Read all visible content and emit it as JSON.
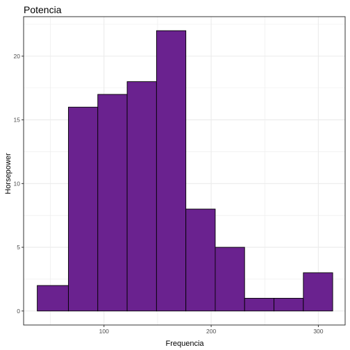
{
  "chart_data": {
    "type": "bar",
    "title": "Potencia",
    "xlabel": "Frequencia",
    "ylabel": "Horsepower",
    "bins": [
      {
        "start": 37.7,
        "end": 66.8,
        "count": 2
      },
      {
        "start": 66.8,
        "end": 94.2,
        "count": 16
      },
      {
        "start": 94.2,
        "end": 121.6,
        "count": 17
      },
      {
        "start": 121.6,
        "end": 149.0,
        "count": 18
      },
      {
        "start": 149.0,
        "end": 176.4,
        "count": 22
      },
      {
        "start": 176.4,
        "end": 203.8,
        "count": 8
      },
      {
        "start": 203.8,
        "end": 231.2,
        "count": 5
      },
      {
        "start": 231.2,
        "end": 258.6,
        "count": 1
      },
      {
        "start": 258.6,
        "end": 286.0,
        "count": 1
      },
      {
        "start": 286.0,
        "end": 313.4,
        "count": 3
      }
    ],
    "xlim": [
      25,
      325
    ],
    "ylim": [
      -1.1,
      23.1
    ],
    "x_major_ticks": [
      100,
      200,
      300
    ],
    "x_minor_ticks": [
      50,
      150,
      250
    ],
    "y_major_ticks": [
      0,
      5,
      10,
      15,
      20
    ],
    "y_minor_ticks": [
      2.5,
      7.5,
      12.5,
      17.5,
      22.5
    ],
    "grid": true,
    "colors": {
      "bar_fill": "#6a228f",
      "bar_stroke": "#000000",
      "grid": "#ebebeb",
      "panel_border": "#333333"
    }
  }
}
